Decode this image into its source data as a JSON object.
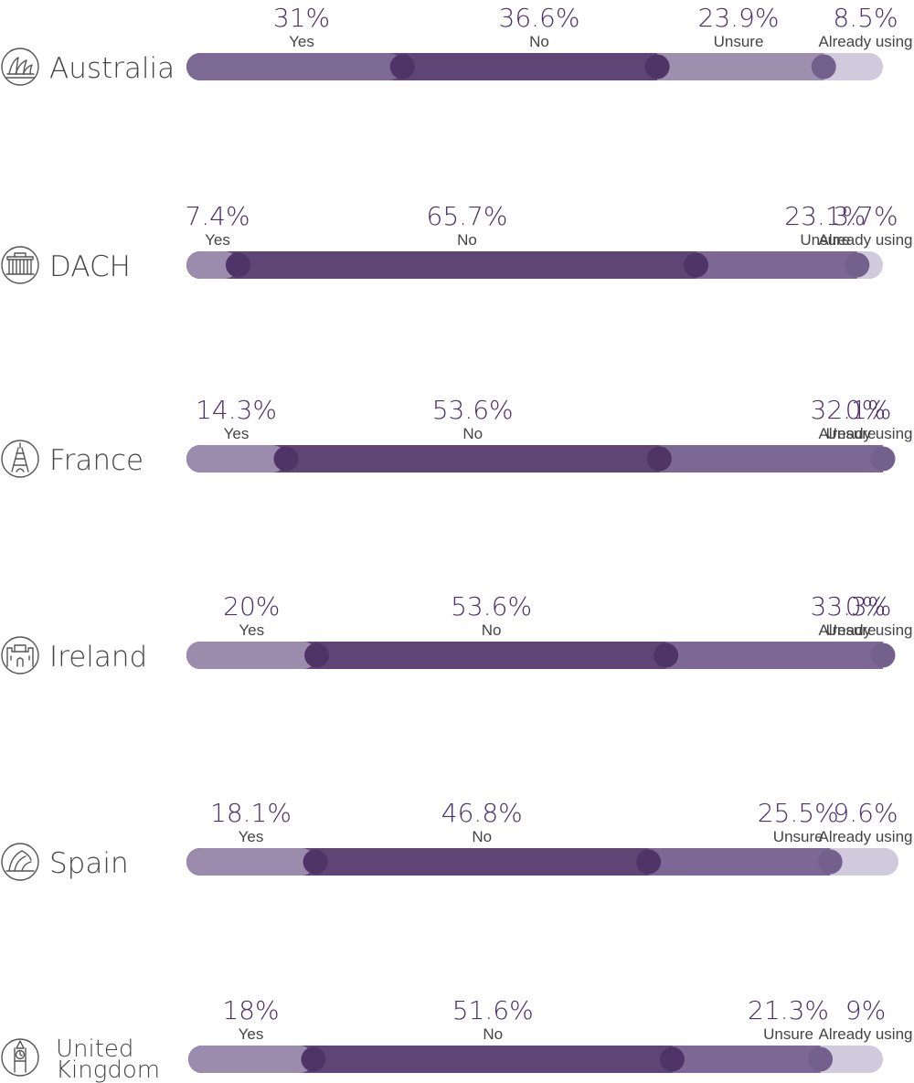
{
  "chart_data": {
    "type": "bar",
    "stacked": true,
    "orientation": "horizontal",
    "categories": [
      "Yes",
      "No",
      "Unsure",
      "Already using"
    ],
    "rows": [
      {
        "country": [
          "Australia"
        ],
        "icon": "sydney-opera-house-icon",
        "values": [
          31,
          36.6,
          23.9,
          8.5
        ],
        "labels": [
          "31%",
          "36.6%",
          "23.9%",
          "8.5%"
        ]
      },
      {
        "country": [
          "DACH"
        ],
        "icon": "brandenburg-gate-icon",
        "values": [
          7.4,
          65.7,
          23.1,
          3.7
        ],
        "labels": [
          "7.4%",
          "65.7%",
          "23.1%",
          "3.7%"
        ]
      },
      {
        "country": [
          "France"
        ],
        "icon": "eiffel-tower-icon",
        "values": [
          14.3,
          53.6,
          32.1,
          0
        ],
        "labels": [
          "14.3%",
          "53.6%",
          "32.1%",
          "0%"
        ]
      },
      {
        "country": [
          "Ireland"
        ],
        "icon": "castle-icon",
        "values": [
          20,
          53.6,
          33.3,
          0
        ],
        "labels": [
          "20%",
          "53.6%",
          "33.3%",
          "0%"
        ]
      },
      {
        "country": [
          "Spain"
        ],
        "icon": "guggenheim-icon",
        "values": [
          18.1,
          46.8,
          25.5,
          9.6
        ],
        "labels": [
          "18.1%",
          "46.8%",
          "25.5%",
          "9.6%"
        ]
      },
      {
        "country": [
          "United",
          "Kingdom"
        ],
        "icon": "big-ben-icon",
        "values": [
          18,
          51.6,
          21.3,
          9
        ],
        "labels": [
          "18%",
          "51.6%",
          "21.3%",
          "9%"
        ]
      }
    ],
    "colors": {
      "yes": "#9b8cad",
      "no": "#5e4576",
      "unsure": "#7d6895",
      "already_using": "#d1c9dc",
      "yes_emphasis": "#7d6a94",
      "label": "#4a2f6b",
      "text": "#444444",
      "icon": "#555555"
    }
  }
}
